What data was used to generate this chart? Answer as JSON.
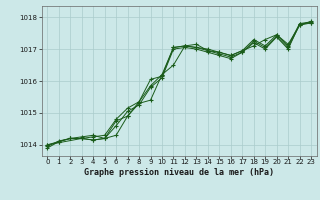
{
  "title": "Graphe pression niveau de la mer (hPa)",
  "background_color": "#cce8e8",
  "grid_color": "#aacccc",
  "line_color": "#1a5c1a",
  "xlim": [
    -0.5,
    23.5
  ],
  "ylim": [
    1013.65,
    1018.35
  ],
  "yticks": [
    1014,
    1015,
    1016,
    1017,
    1018
  ],
  "xticks": [
    0,
    1,
    2,
    3,
    4,
    5,
    6,
    7,
    8,
    9,
    10,
    11,
    12,
    13,
    14,
    15,
    16,
    17,
    18,
    19,
    20,
    21,
    22,
    23
  ],
  "line1_x": [
    0,
    1,
    2,
    3,
    4,
    5,
    6,
    7,
    8,
    9,
    10,
    11,
    12,
    13,
    14,
    15,
    16,
    17,
    18,
    19,
    20,
    21,
    22,
    23
  ],
  "line1_y": [
    1013.9,
    1014.1,
    1014.2,
    1014.2,
    1014.25,
    1014.3,
    1014.8,
    1015.15,
    1015.35,
    1016.05,
    1016.15,
    1017.05,
    1017.1,
    1017.05,
    1017.0,
    1016.9,
    1016.8,
    1016.95,
    1017.3,
    1017.1,
    1017.45,
    1017.1,
    1017.8,
    1017.85
  ],
  "line2_x": [
    0,
    1,
    2,
    3,
    4,
    5,
    6,
    7,
    8,
    9,
    10,
    11,
    12,
    13,
    14,
    15,
    16,
    17,
    18,
    19,
    20,
    21,
    22,
    23
  ],
  "line2_y": [
    1013.95,
    1014.12,
    1014.2,
    1014.25,
    1014.3,
    1014.2,
    1014.3,
    1014.9,
    1015.3,
    1015.4,
    1016.2,
    1017.05,
    1017.1,
    1017.05,
    1016.95,
    1016.85,
    1016.75,
    1016.9,
    1017.25,
    1017.05,
    1017.4,
    1017.05,
    1017.75,
    1017.82
  ],
  "line3_x": [
    0,
    1,
    2,
    3,
    4,
    5,
    6,
    7,
    8,
    9,
    10,
    11,
    12,
    13,
    14,
    15,
    16,
    17,
    18,
    19,
    20,
    21,
    22,
    23
  ],
  "line3_y": [
    1014.0,
    1014.1,
    1014.2,
    1014.2,
    1014.15,
    1014.2,
    1014.6,
    1015.05,
    1015.25,
    1015.8,
    1016.1,
    1017.0,
    1017.05,
    1017.0,
    1016.9,
    1016.8,
    1016.7,
    1016.9,
    1017.2,
    1017.0,
    1017.38,
    1017.0,
    1017.78,
    1017.83
  ],
  "line4_x": [
    0,
    3,
    4,
    5,
    6,
    7,
    8,
    9,
    10,
    11,
    12,
    13,
    14,
    15,
    16,
    17,
    18,
    19,
    20,
    21,
    22,
    23
  ],
  "line4_y": [
    1014.0,
    1014.2,
    1014.15,
    1014.2,
    1014.75,
    1014.9,
    1015.35,
    1015.85,
    1016.2,
    1016.5,
    1017.1,
    1017.15,
    1016.95,
    1016.9,
    1016.8,
    1016.95,
    1017.1,
    1017.3,
    1017.45,
    1017.15,
    1017.75,
    1017.87
  ]
}
